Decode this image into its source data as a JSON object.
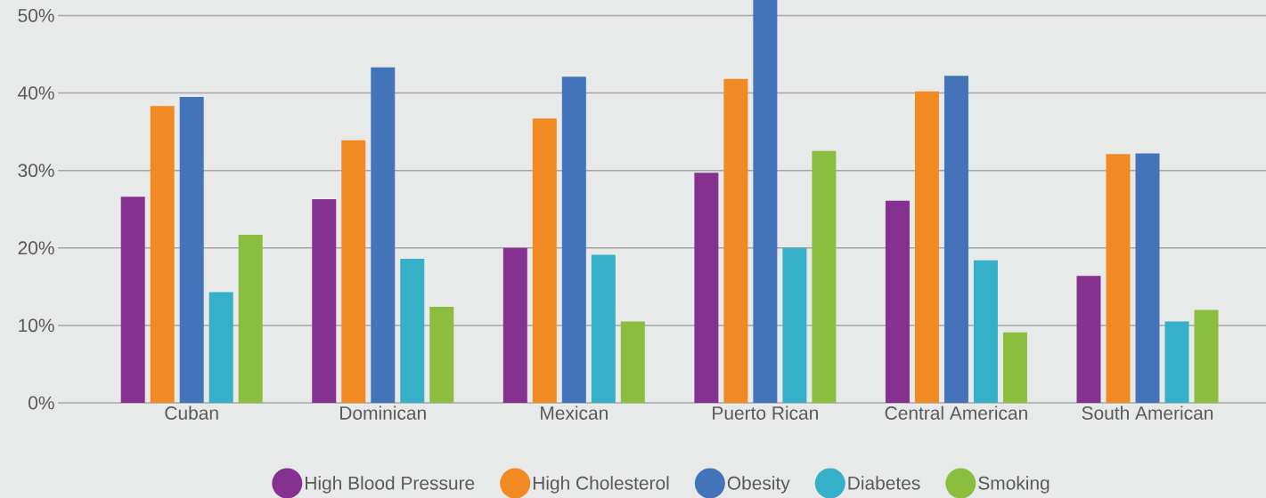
{
  "chart_data": {
    "type": "bar",
    "categories": [
      "Cuban",
      "Dominican",
      "Mexican",
      "Puerto Rican",
      "Central American",
      "South American"
    ],
    "series": [
      {
        "name": "High Blood Pressure",
        "color": "#84318f",
        "values": [
          26.6,
          26.3,
          20.0,
          29.7,
          26.1,
          16.4
        ]
      },
      {
        "name": "High Cholesterol",
        "color": "#f28a24",
        "values": [
          38.3,
          33.9,
          36.7,
          41.8,
          40.2,
          32.1
        ]
      },
      {
        "name": "Obesity",
        "color": "#4374b9",
        "values": [
          39.5,
          43.3,
          42.1,
          52,
          42.2,
          32.2
        ]
      },
      {
        "name": "Diabetes",
        "color": "#36afc8",
        "values": [
          14.3,
          18.6,
          19.1,
          20.0,
          18.4,
          10.5
        ]
      },
      {
        "name": "Smoking",
        "color": "#8bbe3f",
        "values": [
          21.7,
          12.4,
          10.5,
          32.5,
          9.1,
          12.0
        ]
      }
    ],
    "ylim": [
      0,
      52
    ],
    "yticks": [
      {
        "value": 0,
        "label": "0%"
      },
      {
        "value": 10,
        "label": "10%"
      },
      {
        "value": 20,
        "label": "20%"
      },
      {
        "value": 30,
        "label": "30%"
      },
      {
        "value": 40,
        "label": "40%"
      },
      {
        "value": 50,
        "label": "50%"
      }
    ],
    "grid": "y",
    "legend": "bottom"
  }
}
